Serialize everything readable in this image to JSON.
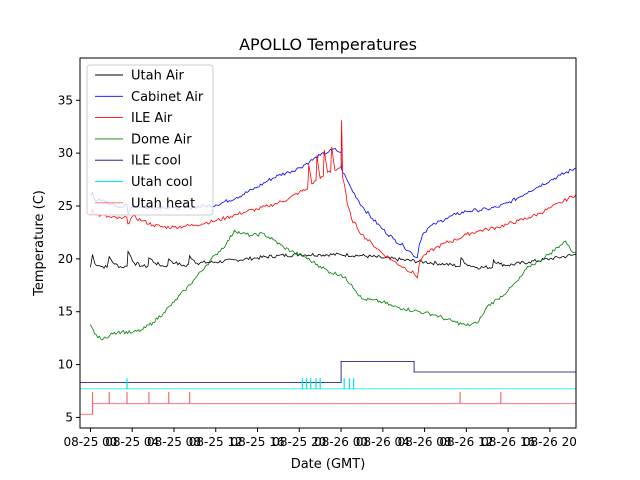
{
  "chart_data": {
    "type": "line",
    "title": "APOLLO Temperatures",
    "xlabel": "Date (GMT)",
    "ylabel": "Temperature (C)",
    "x_unit": "hours since 08-25 00:00 GMT",
    "xlim": [
      -1,
      46.5
    ],
    "ylim": [
      4,
      39
    ],
    "grid": false,
    "legend_position": "upper-left",
    "xticks": [
      {
        "x": 0,
        "label": "08-25 00"
      },
      {
        "x": 4,
        "label": "08-25 04"
      },
      {
        "x": 8,
        "label": "08-25 08"
      },
      {
        "x": 12,
        "label": "08-25 12"
      },
      {
        "x": 16,
        "label": "08-25 16"
      },
      {
        "x": 20,
        "label": "08-25 20"
      },
      {
        "x": 24,
        "label": "08-26 00"
      },
      {
        "x": 28,
        "label": "08-26 04"
      },
      {
        "x": 32,
        "label": "08-26 08"
      },
      {
        "x": 36,
        "label": "08-26 12"
      },
      {
        "x": 40,
        "label": "08-26 16"
      },
      {
        "x": 44,
        "label": "08-26 20"
      }
    ],
    "yticks": [
      {
        "y": 5,
        "label": "5"
      },
      {
        "y": 10,
        "label": "10"
      },
      {
        "y": 15,
        "label": "15"
      },
      {
        "y": 20,
        "label": "20"
      },
      {
        "y": 25,
        "label": "25"
      },
      {
        "y": 30,
        "label": "30"
      },
      {
        "y": 35,
        "label": "35"
      }
    ],
    "series": [
      {
        "name": "Utah Air",
        "color": "#000000",
        "points": [
          [
            0,
            19.2
          ],
          [
            0.2,
            20.4
          ],
          [
            0.4,
            19.6
          ],
          [
            1,
            19.3
          ],
          [
            1.6,
            19.2
          ],
          [
            1.8,
            20.2
          ],
          [
            2.3,
            19.5
          ],
          [
            3,
            19.2
          ],
          [
            3.5,
            19.3
          ],
          [
            3.6,
            20.7
          ],
          [
            4.2,
            19.6
          ],
          [
            5,
            19.3
          ],
          [
            5.5,
            19.3
          ],
          [
            5.6,
            20.1
          ],
          [
            6.2,
            19.6
          ],
          [
            7,
            19.3
          ],
          [
            7.4,
            19.4
          ],
          [
            7.5,
            20.0
          ],
          [
            8.1,
            19.6
          ],
          [
            9.2,
            19.3
          ],
          [
            9.4,
            19.5
          ],
          [
            9.5,
            20.3
          ],
          [
            10.2,
            19.6
          ],
          [
            12,
            19.7
          ],
          [
            14,
            19.9
          ],
          [
            16,
            20.1
          ],
          [
            18,
            20.3
          ],
          [
            20,
            20.4
          ],
          [
            22,
            20.4
          ],
          [
            24,
            20.4
          ],
          [
            26,
            20.3
          ],
          [
            28,
            20.1
          ],
          [
            30,
            19.9
          ],
          [
            32,
            19.7
          ],
          [
            34,
            19.5
          ],
          [
            35.4,
            19.3
          ],
          [
            35.5,
            20.1
          ],
          [
            36,
            19.5
          ],
          [
            37,
            19.2
          ],
          [
            38.5,
            19.2
          ],
          [
            38.6,
            19.9
          ],
          [
            39.2,
            19.5
          ],
          [
            40,
            19.4
          ],
          [
            42,
            19.7
          ],
          [
            44,
            20.0
          ],
          [
            46.5,
            20.4
          ]
        ]
      },
      {
        "name": "Cabinet Air",
        "color": "#0000ff",
        "points": [
          [
            0,
            26.0
          ],
          [
            0.2,
            26.3
          ],
          [
            0.4,
            25.6
          ],
          [
            1,
            25.5
          ],
          [
            2,
            25.2
          ],
          [
            3,
            24.9
          ],
          [
            3.5,
            25.1
          ],
          [
            3.6,
            24.2
          ],
          [
            4,
            25.0
          ],
          [
            5,
            24.9
          ],
          [
            6,
            24.8
          ],
          [
            7,
            24.9
          ],
          [
            8,
            24.8
          ],
          [
            9,
            24.8
          ],
          [
            10,
            24.9
          ],
          [
            11,
            25.0
          ],
          [
            12,
            25.1
          ],
          [
            14,
            25.8
          ],
          [
            16,
            26.8
          ],
          [
            17,
            27.4
          ],
          [
            18,
            27.9
          ],
          [
            19,
            28.2
          ],
          [
            20,
            28.6
          ],
          [
            21,
            29.2
          ],
          [
            22,
            29.8
          ],
          [
            22.8,
            30.1
          ],
          [
            23.3,
            30.4
          ],
          [
            23.6,
            30.2
          ],
          [
            24,
            30.1
          ],
          [
            24.05,
            28.5
          ],
          [
            24.5,
            27.6
          ],
          [
            25,
            26.6
          ],
          [
            26,
            25.0
          ],
          [
            27,
            23.8
          ],
          [
            28,
            22.8
          ],
          [
            29,
            21.9
          ],
          [
            30,
            21.2
          ],
          [
            30.8,
            20.5
          ],
          [
            31.3,
            20.1
          ],
          [
            31.5,
            21.4
          ],
          [
            31.8,
            22.3
          ],
          [
            32.3,
            22.9
          ],
          [
            33,
            23.3
          ],
          [
            34,
            23.8
          ],
          [
            35,
            24.2
          ],
          [
            36,
            24.5
          ],
          [
            37,
            24.6
          ],
          [
            38,
            24.7
          ],
          [
            39,
            24.9
          ],
          [
            40,
            25.3
          ],
          [
            41,
            25.8
          ],
          [
            42,
            26.4
          ],
          [
            43,
            26.9
          ],
          [
            44,
            27.4
          ],
          [
            45,
            27.9
          ],
          [
            46.5,
            28.6
          ]
        ]
      },
      {
        "name": "ILE Air",
        "color": "#ff0000",
        "points": [
          [
            0,
            24.2
          ],
          [
            0.2,
            24.7
          ],
          [
            0.4,
            24.2
          ],
          [
            1,
            24.1
          ],
          [
            2,
            23.9
          ],
          [
            3,
            23.8
          ],
          [
            3.5,
            23.9
          ],
          [
            3.6,
            23.3
          ],
          [
            4,
            24.0
          ],
          [
            5,
            23.6
          ],
          [
            6,
            23.2
          ],
          [
            7,
            23.0
          ],
          [
            8,
            23.0
          ],
          [
            9,
            23.1
          ],
          [
            10,
            23.2
          ],
          [
            11,
            23.4
          ],
          [
            12,
            23.6
          ],
          [
            13,
            23.9
          ],
          [
            14,
            24.2
          ],
          [
            15,
            24.5
          ],
          [
            16,
            24.7
          ],
          [
            17,
            25.0
          ],
          [
            18,
            25.3
          ],
          [
            19,
            25.7
          ],
          [
            20,
            26.3
          ],
          [
            20.8,
            26.6
          ],
          [
            20.9,
            28.9
          ],
          [
            21.2,
            27.1
          ],
          [
            21.6,
            27.4
          ],
          [
            21.7,
            29.8
          ],
          [
            22,
            27.6
          ],
          [
            22.3,
            27.8
          ],
          [
            22.4,
            30.3
          ],
          [
            22.7,
            28.2
          ],
          [
            23,
            28.2
          ],
          [
            23.1,
            30.6
          ],
          [
            23.4,
            28.4
          ],
          [
            23.8,
            28.6
          ],
          [
            24,
            28.8
          ],
          [
            24.05,
            33.1
          ],
          [
            24.15,
            27.7
          ],
          [
            24.3,
            27.1
          ],
          [
            24.6,
            25.2
          ],
          [
            25,
            23.8
          ],
          [
            26,
            22.3
          ],
          [
            27,
            21.4
          ],
          [
            28,
            20.5
          ],
          [
            29,
            19.8
          ],
          [
            30,
            19.2
          ],
          [
            31,
            18.6
          ],
          [
            31.3,
            18.2
          ],
          [
            31.5,
            19.6
          ],
          [
            32,
            20.4
          ],
          [
            33,
            21.0
          ],
          [
            34,
            21.5
          ],
          [
            35,
            21.8
          ],
          [
            36,
            22.3
          ],
          [
            37,
            22.6
          ],
          [
            38,
            22.8
          ],
          [
            39,
            23.0
          ],
          [
            40,
            23.3
          ],
          [
            41,
            23.6
          ],
          [
            42,
            23.9
          ],
          [
            43,
            24.3
          ],
          [
            44,
            24.8
          ],
          [
            45,
            25.3
          ],
          [
            46.5,
            26.1
          ]
        ]
      },
      {
        "name": "Dome Air",
        "color": "#008000",
        "points": [
          [
            0,
            13.8
          ],
          [
            0.4,
            12.9
          ],
          [
            1,
            12.4
          ],
          [
            1.5,
            12.5
          ],
          [
            2,
            13.0
          ],
          [
            3,
            13.1
          ],
          [
            4,
            13.0
          ],
          [
            5,
            13.3
          ],
          [
            6,
            14.0
          ],
          [
            7,
            14.9
          ],
          [
            8,
            15.9
          ],
          [
            9,
            17.0
          ],
          [
            10,
            18.1
          ],
          [
            11,
            19.3
          ],
          [
            12,
            20.4
          ],
          [
            13,
            21.4
          ],
          [
            13.8,
            22.7
          ],
          [
            14.5,
            22.4
          ],
          [
            15.5,
            22.2
          ],
          [
            16.5,
            22.4
          ],
          [
            17.5,
            21.8
          ],
          [
            18.5,
            21.1
          ],
          [
            19.5,
            20.6
          ],
          [
            20.5,
            20.2
          ],
          [
            21.3,
            19.7
          ],
          [
            22,
            19.3
          ],
          [
            23,
            18.7
          ],
          [
            24,
            18.5
          ],
          [
            25,
            17.6
          ],
          [
            26,
            16.2
          ],
          [
            27,
            16.1
          ],
          [
            28,
            15.9
          ],
          [
            29,
            15.5
          ],
          [
            30,
            15.3
          ],
          [
            31,
            15.1
          ],
          [
            32,
            14.9
          ],
          [
            33,
            14.7
          ],
          [
            34,
            14.3
          ],
          [
            35,
            14.0
          ],
          [
            36,
            13.7
          ],
          [
            37,
            13.9
          ],
          [
            37.5,
            14.6
          ],
          [
            38,
            15.5
          ],
          [
            39,
            16.2
          ],
          [
            40,
            17.0
          ],
          [
            41,
            18.0
          ],
          [
            42,
            19.3
          ],
          [
            43,
            19.8
          ],
          [
            44,
            20.5
          ],
          [
            45,
            21.3
          ],
          [
            45.5,
            21.7
          ],
          [
            46,
            20.8
          ],
          [
            46.5,
            20.6
          ]
        ]
      },
      {
        "name": "ILE cool",
        "color": "#00008b",
        "points": [
          [
            -1,
            8.3
          ],
          [
            24,
            8.3
          ],
          [
            24,
            10.3
          ],
          [
            31,
            10.3
          ],
          [
            31,
            9.3
          ],
          [
            46.5,
            9.3
          ]
        ]
      },
      {
        "name": "Utah cool",
        "color": "#00e5e5",
        "points": [
          [
            -1,
            7.7
          ],
          [
            46.5,
            7.7
          ]
        ],
        "spikes": [
          3.5,
          20.3,
          20.7,
          21.1,
          21.6,
          22.0,
          24.3,
          24.8,
          25.2
        ],
        "spike_top": 8.7
      },
      {
        "name": "Utah heat",
        "color": "#ff6666",
        "points": [
          [
            -1,
            5.3
          ],
          [
            0.2,
            5.3
          ],
          [
            0.2,
            6.3
          ],
          [
            46.5,
            6.3
          ]
        ],
        "spikes": [
          0.2,
          1.8,
          3.5,
          5.6,
          7.5,
          9.5,
          35.4,
          39.3
        ],
        "spike_top": 7.4
      }
    ]
  }
}
